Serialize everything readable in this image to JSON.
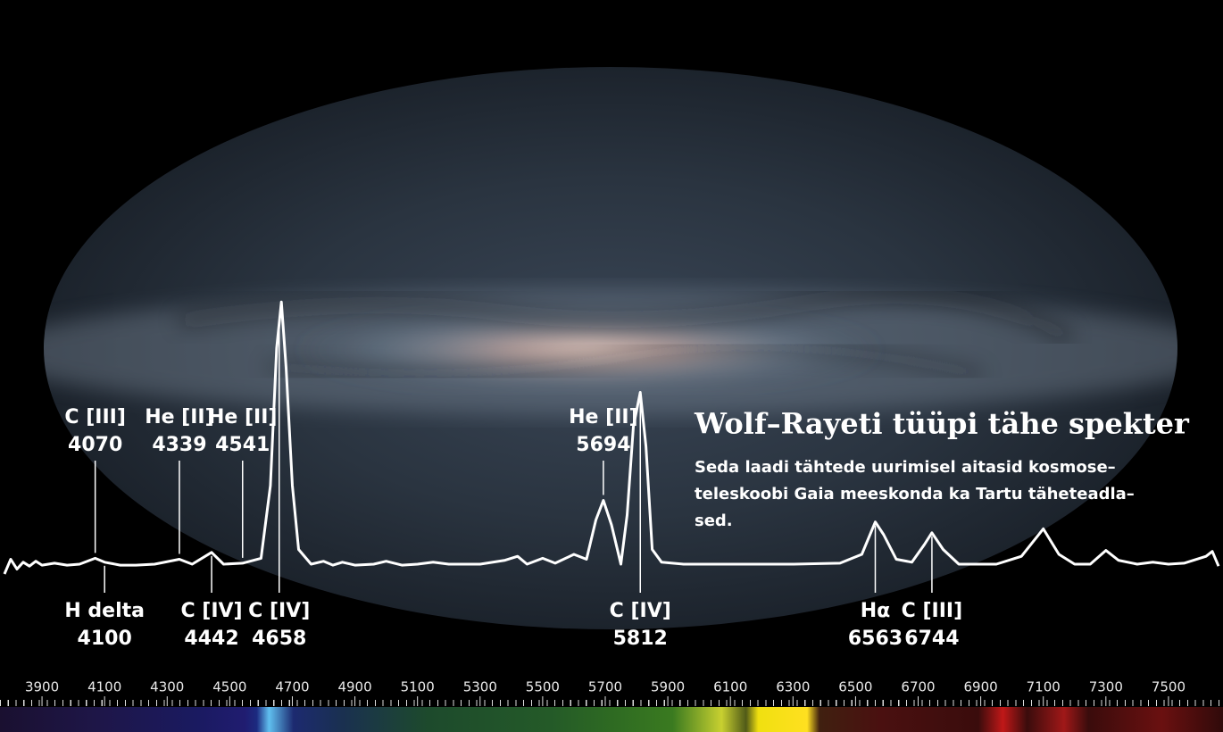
{
  "chart_data": {
    "type": "line",
    "title": "Wolf–Rayeti tüüpi tähe spekter",
    "subtitle_lines": [
      "Seda laadi tähtede uurimisel aitasid kosmose–",
      "teleskoobi Gaia meeskonda ka Tartu täheteadla–",
      "sed."
    ],
    "x": [
      3780,
      3800,
      3820,
      3840,
      3860,
      3880,
      3900,
      3940,
      3980,
      4020,
      4070,
      4100,
      4150,
      4200,
      4260,
      4339,
      4380,
      4442,
      4480,
      4541,
      4600,
      4630,
      4650,
      4665,
      4680,
      4700,
      4720,
      4760,
      4800,
      4830,
      4860,
      4900,
      4960,
      5000,
      5050,
      5100,
      5150,
      5200,
      5300,
      5380,
      5420,
      5450,
      5500,
      5540,
      5600,
      5640,
      5670,
      5694,
      5720,
      5750,
      5770,
      5790,
      5812,
      5830,
      5850,
      5880,
      5950,
      6100,
      6300,
      6450,
      6520,
      6563,
      6590,
      6630,
      6680,
      6720,
      6744,
      6780,
      6830,
      6950,
      7030,
      7100,
      7150,
      7200,
      7250,
      7300,
      7340,
      7400,
      7450,
      7500,
      7550,
      7620,
      7640,
      7660
    ],
    "series": [
      {
        "color": "#ffffff",
        "values": [
          0.9,
          1.05,
          0.95,
          1.02,
          0.98,
          1.03,
          0.99,
          1.01,
          0.99,
          1.0,
          1.06,
          1.02,
          0.99,
          0.99,
          1.0,
          1.05,
          1.0,
          1.12,
          1.0,
          1.01,
          1.06,
          1.8,
          3.2,
          3.67,
          3.0,
          1.8,
          1.15,
          1.0,
          1.03,
          0.99,
          1.02,
          0.99,
          1.0,
          1.03,
          0.99,
          1.0,
          1.02,
          1.0,
          1.0,
          1.04,
          1.08,
          1.0,
          1.06,
          1.01,
          1.1,
          1.05,
          1.45,
          1.65,
          1.4,
          1.0,
          1.5,
          2.4,
          2.75,
          2.2,
          1.15,
          1.02,
          1.0,
          1.0,
          1.0,
          1.01,
          1.1,
          1.43,
          1.3,
          1.05,
          1.02,
          1.2,
          1.32,
          1.15,
          1.0,
          1.0,
          1.08,
          1.36,
          1.1,
          1.0,
          1.0,
          1.14,
          1.04,
          1.0,
          1.02,
          1.0,
          1.01,
          1.08,
          1.13,
          0.98
        ]
      }
    ],
    "xlim": [
      3780,
      7660
    ],
    "ylim": [
      0,
      5
    ],
    "xticks": [
      3900,
      4100,
      4300,
      4500,
      4700,
      4900,
      5100,
      5300,
      5500,
      5700,
      5900,
      6100,
      6300,
      6500,
      6700,
      6900,
      7100,
      7300,
      7500
    ],
    "lines_above": [
      {
        "name": "C [III]",
        "wavelength": 4070
      },
      {
        "name": "He [II]",
        "wavelength": 4339
      },
      {
        "name": "He [II]",
        "wavelength": 4541
      },
      {
        "name": "He [II]",
        "wavelength": 5694
      }
    ],
    "lines_below": [
      {
        "name": "H delta",
        "wavelength": 4100
      },
      {
        "name": "C [IV]",
        "wavelength": 4442
      },
      {
        "name": "C [IV]",
        "wavelength": 4658
      },
      {
        "name": "C [IV]",
        "wavelength": 5812
      },
      {
        "name": "Hα",
        "wavelength": 6563
      },
      {
        "name": "C [III]",
        "wavelength": 6744
      }
    ]
  }
}
